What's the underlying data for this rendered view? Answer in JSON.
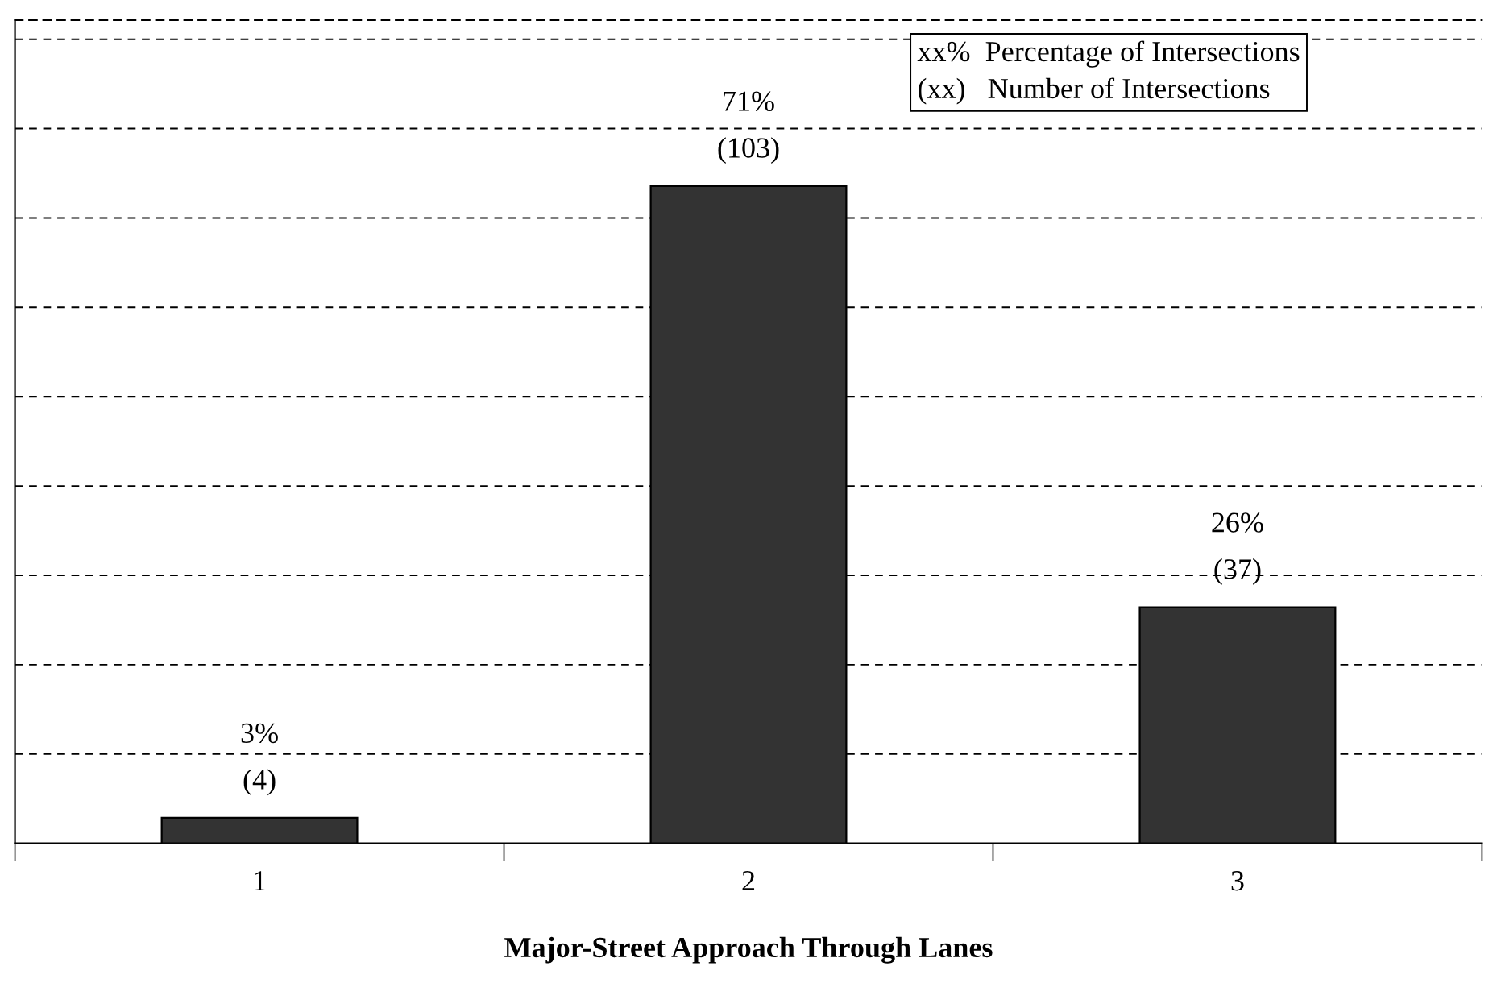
{
  "chart_data": {
    "type": "bar",
    "xlabel": "Major-Street Approach Through Lanes",
    "categories": [
      "1",
      "2",
      "3"
    ],
    "values": [
      4,
      103,
      37
    ],
    "value_labels": [
      "3%\n(4)",
      "71%\n(103)",
      "26%\n(37)"
    ],
    "color": "#333333",
    "ylim": [
      0,
      129
    ],
    "yticks": [
      {
        "value": 14,
        "label": null
      },
      {
        "value": 28,
        "label": null
      },
      {
        "value": 42,
        "label": null
      },
      {
        "value": 56,
        "label": null
      },
      {
        "value": 70,
        "label": null
      },
      {
        "value": 84,
        "label": null
      },
      {
        "value": 98,
        "label": null
      },
      {
        "value": 112,
        "label": null
      },
      {
        "value": 126,
        "label": null
      }
    ],
    "tick_labels": "x",
    "grid": "y",
    "annotations": [
      "xx%  Percentage of Intersections\n(xx)   Number of Intersections"
    ]
  }
}
